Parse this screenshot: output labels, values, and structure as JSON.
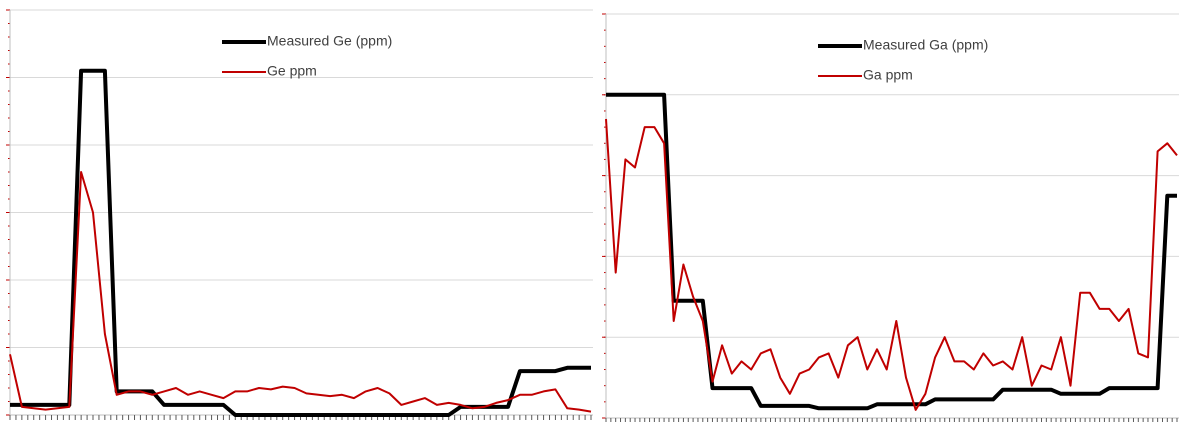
{
  "chart_data": [
    {
      "type": "line",
      "categories": [
        null,
        null,
        null,
        null,
        null,
        null,
        null,
        null,
        null,
        null,
        null,
        null,
        null,
        null,
        null,
        null,
        null,
        null,
        null,
        null,
        null,
        null,
        null,
        null,
        null,
        null,
        null,
        null,
        null,
        null,
        null,
        null,
        null,
        null,
        null,
        null,
        null,
        null,
        null,
        null,
        null,
        null,
        null,
        null,
        null,
        null,
        null,
        null,
        null,
        null
      ],
      "series": [
        {
          "name": "Measured Ge (ppm)",
          "color": "#000000",
          "values": [
            0.15,
            0.15,
            0.15,
            0.15,
            0.15,
            0.15,
            5.1,
            5.1,
            5.1,
            0.35,
            0.35,
            0.35,
            0.35,
            0.15,
            0.15,
            0.15,
            0.15,
            0.15,
            0.15,
            0,
            0,
            0,
            0,
            0,
            0,
            0,
            0,
            0,
            0,
            0,
            0,
            0,
            0,
            0,
            0,
            0,
            0,
            0,
            0.12,
            0.12,
            0.12,
            0.12,
            0.12,
            0.65,
            0.65,
            0.65,
            0.65,
            0.7,
            0.7,
            0.7
          ]
        },
        {
          "name": "Ge ppm",
          "color": "#c00000",
          "values": [
            0.9,
            0.12,
            0.1,
            0.08,
            0.1,
            0.12,
            3.6,
            3.0,
            1.2,
            0.3,
            0.35,
            0.35,
            0.3,
            0.35,
            0.4,
            0.3,
            0.35,
            0.3,
            0.25,
            0.35,
            0.35,
            0.4,
            0.38,
            0.42,
            0.4,
            0.32,
            0.3,
            0.28,
            0.3,
            0.25,
            0.35,
            0.4,
            0.32,
            0.15,
            0.2,
            0.25,
            0.15,
            0.18,
            0.15,
            0.1,
            0.12,
            0.18,
            0.22,
            0.3,
            0.3,
            0.35,
            0.38,
            0.1,
            0.08,
            0.05
          ]
        }
      ],
      "ylim": [
        0,
        6
      ],
      "yticks": [
        0,
        1,
        2,
        3,
        4,
        5,
        6
      ],
      "grid": true
    },
    {
      "type": "line",
      "categories": [
        null,
        null,
        null,
        null,
        null,
        null,
        null,
        null,
        null,
        null,
        null,
        null,
        null,
        null,
        null,
        null,
        null,
        null,
        null,
        null,
        null,
        null,
        null,
        null,
        null,
        null,
        null,
        null,
        null,
        null,
        null,
        null,
        null,
        null,
        null,
        null,
        null,
        null,
        null,
        null,
        null,
        null,
        null,
        null,
        null,
        null,
        null,
        null,
        null,
        null,
        null,
        null,
        null,
        null,
        null,
        null,
        null,
        null,
        null,
        null
      ],
      "series": [
        {
          "name": "Measured Ga (ppm)",
          "color": "#000000",
          "values": [
            4,
            4,
            4,
            4,
            4,
            4,
            4,
            1.45,
            1.45,
            1.45,
            1.45,
            0.37,
            0.37,
            0.37,
            0.37,
            0.37,
            0.15,
            0.15,
            0.15,
            0.15,
            0.15,
            0.15,
            0.12,
            0.12,
            0.12,
            0.12,
            0.12,
            0.12,
            0.17,
            0.17,
            0.17,
            0.17,
            0.17,
            0.17,
            0.23,
            0.23,
            0.23,
            0.23,
            0.23,
            0.23,
            0.23,
            0.35,
            0.35,
            0.35,
            0.35,
            0.35,
            0.35,
            0.3,
            0.3,
            0.3,
            0.3,
            0.3,
            0.37,
            0.37,
            0.37,
            0.37,
            0.37,
            0.37,
            2.75,
            2.75
          ]
        },
        {
          "name": "Ga ppm",
          "color": "#c00000",
          "values": [
            3.7,
            1.8,
            3.2,
            3.1,
            3.6,
            3.6,
            3.4,
            1.2,
            1.9,
            1.5,
            1.2,
            0.45,
            0.9,
            0.55,
            0.7,
            0.6,
            0.8,
            0.85,
            0.5,
            0.3,
            0.55,
            0.6,
            0.75,
            0.8,
            0.5,
            0.9,
            1.0,
            0.6,
            0.85,
            0.6,
            1.2,
            0.5,
            0.1,
            0.3,
            0.75,
            1.0,
            0.7,
            0.7,
            0.6,
            0.8,
            0.65,
            0.7,
            0.6,
            1.0,
            0.4,
            0.65,
            0.6,
            1.0,
            0.4,
            1.55,
            1.55,
            1.35,
            1.35,
            1.2,
            1.35,
            0.8,
            0.75,
            3.3,
            3.4,
            3.25
          ]
        }
      ],
      "ylim": [
        0,
        5
      ],
      "yticks": [
        0,
        1,
        2,
        3,
        4,
        5
      ],
      "grid": true
    }
  ]
}
